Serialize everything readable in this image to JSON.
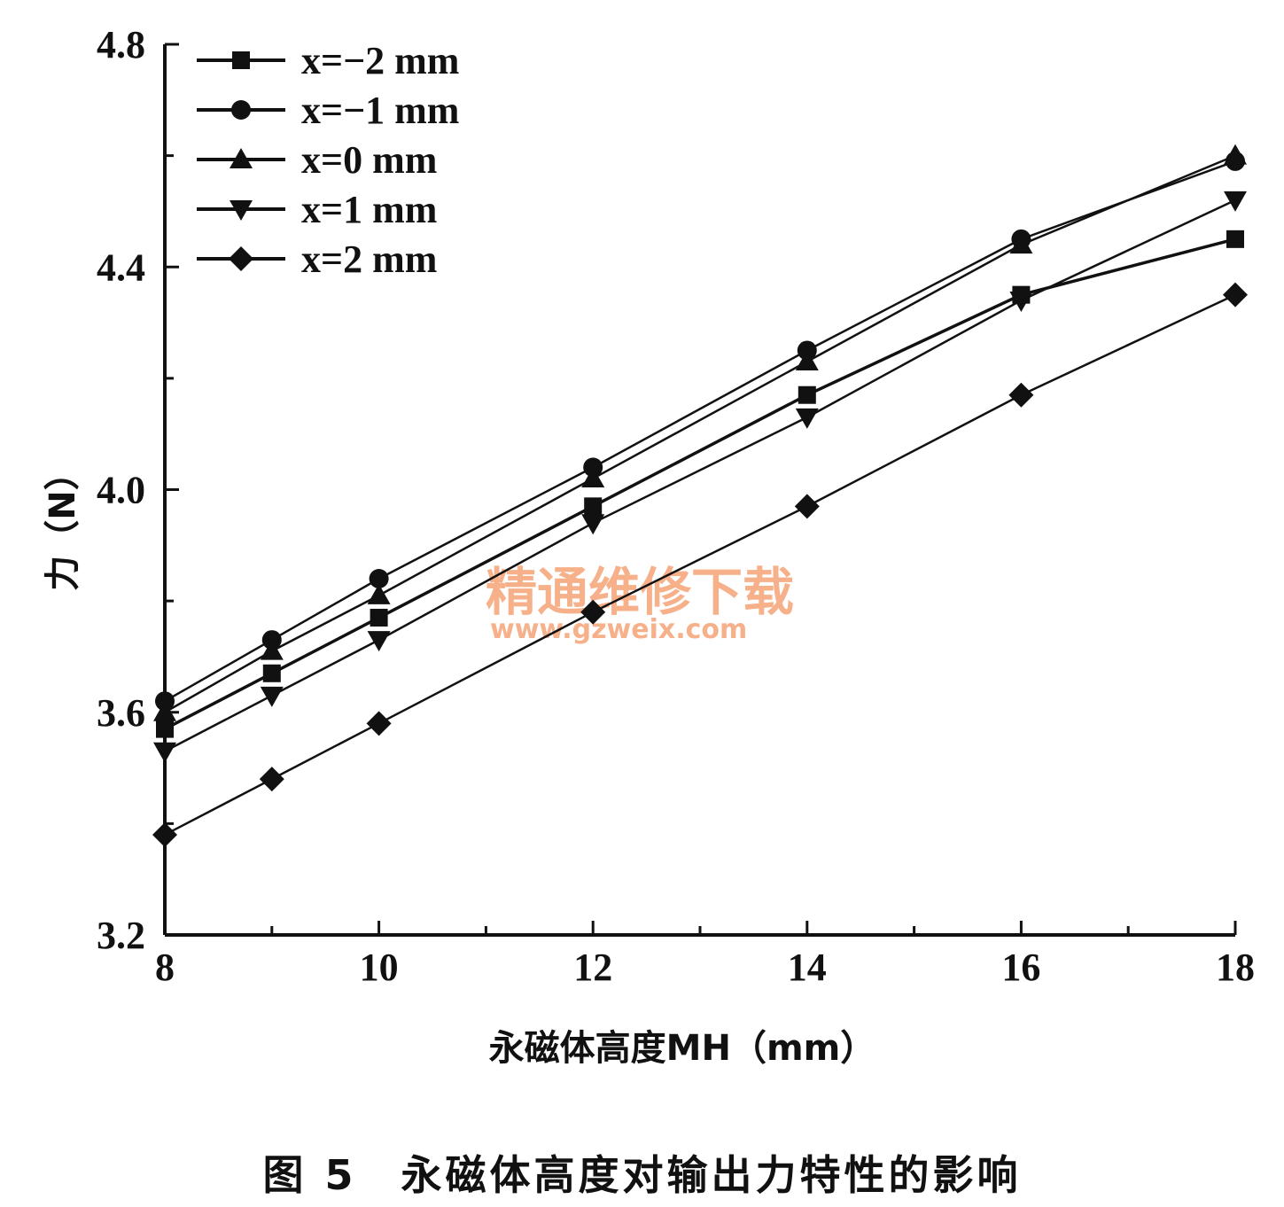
{
  "chart_data": {
    "type": "line",
    "xlabel": "永磁体高度MH（mm）",
    "ylabel": "力（N）",
    "xlim": [
      8,
      18
    ],
    "ylim": [
      3.2,
      4.8
    ],
    "x_ticks": [
      8,
      10,
      12,
      14,
      16,
      18
    ],
    "y_ticks": [
      "3.2",
      "3.6",
      "4.0",
      "4.4",
      "4.8"
    ],
    "grid": false,
    "legend_position": "top-left",
    "series": [
      {
        "name": "x=−2 mm",
        "marker": "square",
        "x": [
          8,
          9,
          10,
          12,
          14,
          16,
          18
        ],
        "y": [
          3.57,
          3.67,
          3.77,
          3.97,
          4.17,
          4.35,
          4.45
        ]
      },
      {
        "name": "x=−1 mm",
        "marker": "circle",
        "x": [
          8,
          9,
          10,
          12,
          14,
          16,
          18
        ],
        "y": [
          3.62,
          3.73,
          3.84,
          4.04,
          4.25,
          4.45,
          4.59
        ]
      },
      {
        "name": "x=0 mm",
        "marker": "triangle-up",
        "x": [
          8,
          9,
          10,
          12,
          14,
          16,
          18
        ],
        "y": [
          3.6,
          3.71,
          3.81,
          4.02,
          4.23,
          4.44,
          4.6
        ]
      },
      {
        "name": "x=1 mm",
        "marker": "triangle-down",
        "x": [
          8,
          9,
          10,
          12,
          14,
          16,
          18
        ],
        "y": [
          3.53,
          3.63,
          3.73,
          3.94,
          4.13,
          4.34,
          4.52
        ]
      },
      {
        "name": "x=2 mm",
        "marker": "diamond",
        "x": [
          8,
          9,
          10,
          12,
          14,
          16,
          18
        ],
        "y": [
          3.38,
          3.48,
          3.58,
          3.78,
          3.97,
          4.17,
          4.35
        ]
      }
    ]
  },
  "caption": "图 5　永磁体高度对输出力特性的影响",
  "watermark": {
    "text_cn": "精通维修下载",
    "url": "www.gzweix.com"
  }
}
